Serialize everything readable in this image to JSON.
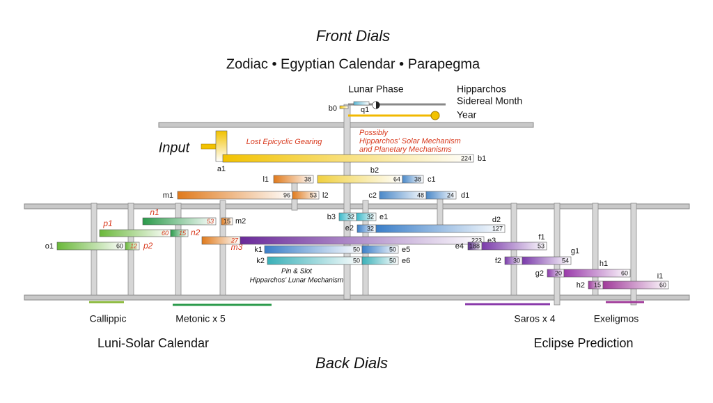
{
  "header": {
    "title": "Front Dials",
    "subtitle": "Zodiac • Egyptian Calendar • Parapegma"
  },
  "top_labels": {
    "lunar_phase": "Lunar Phase",
    "sidereal_month": [
      "Hipparchos",
      "Sidereal Month"
    ],
    "year": "Year"
  },
  "annotations": {
    "input": "Input",
    "lost": "Lost Epicyclic Gearing",
    "possibly": [
      "Possibly",
      "Hipparchos' Solar Mechanism",
      "and Planetary Mechanisms"
    ],
    "pin_slot": [
      "Pin & Slot",
      "Hipparchos' Lunar Mechanism"
    ]
  },
  "gears": [
    {
      "label": "a1",
      "color": "#f2c200"
    },
    {
      "label": "b0",
      "color": "#f2c200"
    },
    {
      "label": "q1",
      "color": "#5bb8d6"
    },
    {
      "label": "b1",
      "teeth": 224,
      "color": "#f2c200"
    },
    {
      "label": "l1",
      "teeth": 38,
      "color": "#e07a1c"
    },
    {
      "label": "b2",
      "teeth": 64,
      "color": "#f0d040"
    },
    {
      "label": "c1",
      "teeth": 38,
      "color": "#4a88c8"
    },
    {
      "label": "m1",
      "teeth": 96,
      "color": "#e07a1c"
    },
    {
      "label": "l2",
      "teeth": 53,
      "color": "#e07a1c"
    },
    {
      "label": "c2",
      "teeth": 48,
      "color": "#4a88c8"
    },
    {
      "label": "d1",
      "teeth": 24,
      "color": "#4a88c8"
    },
    {
      "label": "n1",
      "teeth": 53,
      "color": "#2a9a4a",
      "hypothetical": true
    },
    {
      "label": "m2",
      "teeth": 15,
      "color": "#e07a1c"
    },
    {
      "label": "p1",
      "teeth": 60,
      "color": "#6ab83a",
      "hypothetical": true
    },
    {
      "label": "n2",
      "teeth": 15,
      "color": "#2a9a4a",
      "hypothetical": true
    },
    {
      "label": "b3",
      "teeth": 32,
      "color": "#3ab8c8"
    },
    {
      "label": "e1",
      "teeth": 32,
      "color": "#3ab8c8"
    },
    {
      "label": "e2",
      "teeth": 32,
      "color": "#3a7ec8"
    },
    {
      "label": "d2",
      "teeth": 127,
      "color": "#3a7ec8"
    },
    {
      "label": "m3",
      "teeth": 27,
      "color": "#e07a1c",
      "hypothetical": true
    },
    {
      "label": "e3",
      "teeth": 223,
      "color": "#6a2a9a"
    },
    {
      "label": "o1",
      "teeth": 60,
      "color": "#6ab83a"
    },
    {
      "label": "p2",
      "teeth": 12,
      "color": "#6ab83a",
      "hypothetical": true
    },
    {
      "label": "e4",
      "teeth": 188,
      "color": "#5a2a8a"
    },
    {
      "label": "f1",
      "teeth": 53,
      "color": "#7a3aaa"
    },
    {
      "label": "k1",
      "teeth": 50,
      "color": "#3a7ec8"
    },
    {
      "label": "e5",
      "teeth": 50,
      "color": "#3a7ec8"
    },
    {
      "label": "k2",
      "teeth": 50,
      "color": "#3ab0b8"
    },
    {
      "label": "e6",
      "teeth": 50,
      "color": "#3ab0b8"
    },
    {
      "label": "f2",
      "teeth": 30,
      "color": "#7a3aaa"
    },
    {
      "label": "g1",
      "teeth": 54,
      "color": "#7a3aaa"
    },
    {
      "label": "g2",
      "teeth": 20,
      "color": "#8a3aaa"
    },
    {
      "label": "h1",
      "teeth": 60,
      "color": "#9a3aaa"
    },
    {
      "label": "h2",
      "teeth": 15,
      "color": "#9a3a9a"
    },
    {
      "label": "i1",
      "teeth": 60,
      "color": "#a03a9a"
    }
  ],
  "footer": {
    "dials": [
      "Callippic",
      "Metonic x 5",
      "Saros x 4",
      "Exeligmos"
    ],
    "groups": [
      "Luni-Solar Calendar",
      "Eclipse Prediction"
    ],
    "title": "Back Dials"
  }
}
